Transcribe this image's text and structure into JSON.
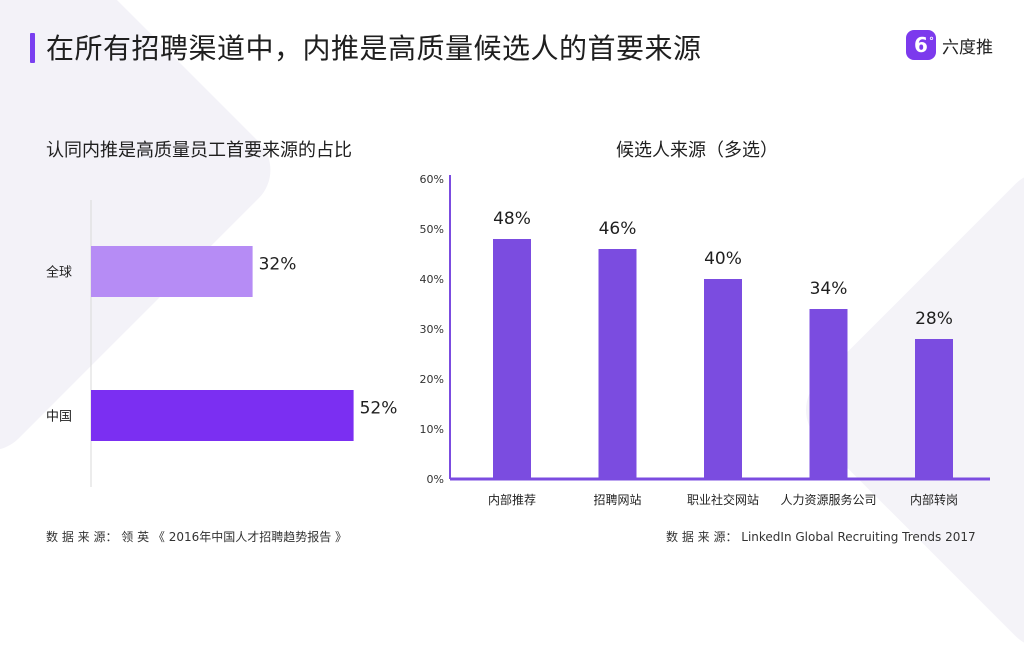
{
  "header": {
    "title": "在所有招聘渠道中，内推是高质量候选人的首要来源",
    "logo_text": "六度推",
    "logo_glyph": "6"
  },
  "chart_data": [
    {
      "type": "bar",
      "orientation": "horizontal",
      "title": "认同内推是高质量员工首要来源的占比",
      "categories": [
        "全球",
        "中国"
      ],
      "values": [
        32,
        52
      ],
      "value_labels": [
        "32%",
        "52%"
      ],
      "colors": [
        "#b68cf5",
        "#7b2ff2"
      ],
      "grid": false
    },
    {
      "type": "bar",
      "title": "候选人来源（多选）",
      "categories": [
        "内部推荐",
        "招聘网站",
        "职业社交网站",
        "人力资源服务公司",
        "内部转岗"
      ],
      "values": [
        48,
        46,
        40,
        34,
        28
      ],
      "value_labels": [
        "48%",
        "46%",
        "40%",
        "34%",
        "28%"
      ],
      "ylim": [
        0,
        60
      ],
      "yticks": [
        "0%",
        "10%",
        "20%",
        "30%",
        "40%",
        "50%",
        "60%"
      ],
      "color": "#7b4ce0",
      "grid": false
    }
  ],
  "footer": {
    "source_left": "数 据 来 源：  领 英 《  2016年中国人才招聘趋势报告 》",
    "source_right": "数 据 来 源：  LinkedIn Global Recruiting Trends 2017"
  }
}
